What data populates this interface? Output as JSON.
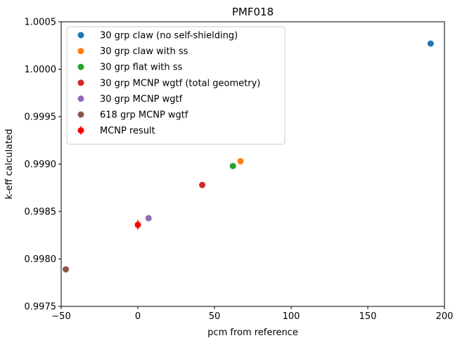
{
  "chart_data": {
    "type": "scatter",
    "title": "PMF018",
    "xlabel": "pcm from reference",
    "ylabel": "k-eff calculated",
    "xlim": [
      -50,
      200
    ],
    "ylim": [
      0.9975,
      1.0005
    ],
    "xticks": [
      -50,
      0,
      50,
      100,
      150,
      200
    ],
    "xtick_labels": [
      "−50",
      "0",
      "50",
      "100",
      "150",
      "200"
    ],
    "yticks": [
      0.9975,
      0.998,
      0.9985,
      0.999,
      0.9995,
      1.0,
      1.0005
    ],
    "ytick_labels": [
      "0.9975",
      "0.9980",
      "0.9985",
      "0.9990",
      "0.9995",
      "1.0000",
      "1.0005"
    ],
    "grid": false,
    "legend_position": "top-left",
    "series": [
      {
        "name": "30 grp claw (no self-shielding)",
        "color": "#1f77b4",
        "points": [
          {
            "x": 191.0,
            "y": 1.00027
          }
        ]
      },
      {
        "name": "30 grp claw with ss",
        "color": "#ff7f0e",
        "points": [
          {
            "x": 67.0,
            "y": 0.99903
          }
        ]
      },
      {
        "name": "30 grp flat with ss",
        "color": "#2ca02c",
        "points": [
          {
            "x": 62.0,
            "y": 0.99898
          }
        ]
      },
      {
        "name": "30 grp MCNP wgtf (total geometry)",
        "color": "#d62728",
        "points": [
          {
            "x": 42.0,
            "y": 0.99878
          }
        ]
      },
      {
        "name": "30 grp MCNP wgtf",
        "color": "#9467bd",
        "points": [
          {
            "x": 7.0,
            "y": 0.99843
          }
        ]
      },
      {
        "name": "618 grp MCNP wgtf",
        "color": "#8c564b",
        "points": [
          {
            "x": -47.0,
            "y": 0.99789
          }
        ]
      },
      {
        "name": "MCNP result",
        "color": "#ff0000",
        "errorbar": true,
        "points": [
          {
            "x": 0.0,
            "y": 0.99836,
            "yerr": 5e-05
          }
        ]
      }
    ]
  }
}
